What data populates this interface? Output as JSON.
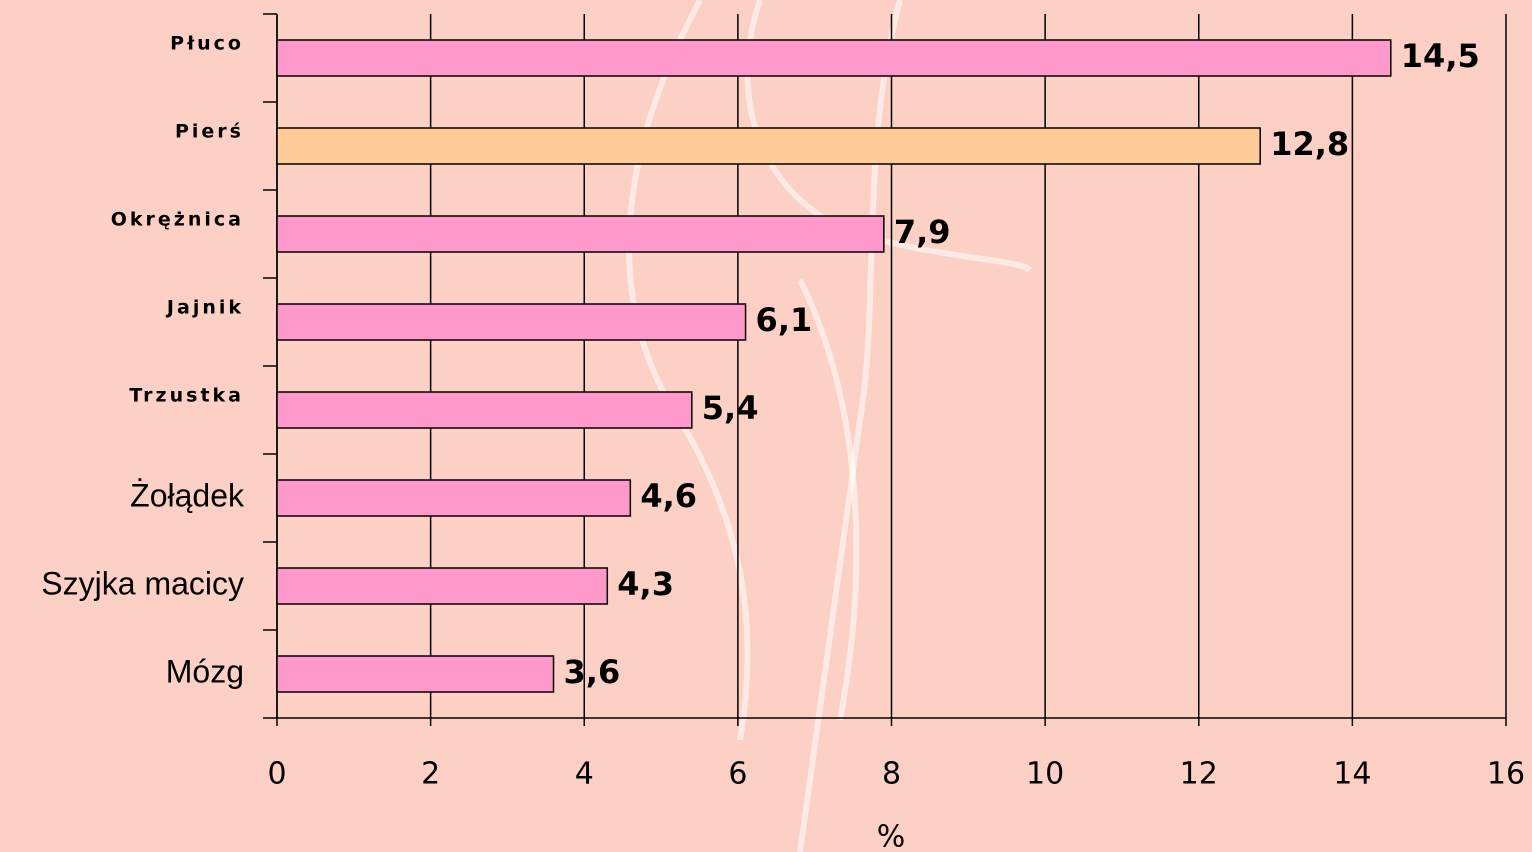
{
  "chart_data": {
    "type": "bar",
    "orientation": "horizontal",
    "categories": [
      "Płuco",
      "Pierś",
      "Okrężnica",
      "Jajnik",
      "Trzustka",
      "Żołądek",
      "Szyjka macicy",
      "Mózg"
    ],
    "values": [
      14.5,
      12.8,
      7.9,
      6.1,
      5.4,
      4.6,
      4.3,
      3.6
    ],
    "value_labels": [
      "14,5",
      "12,8",
      "7,9",
      "6,1",
      "5,4",
      "4,6",
      "4,3",
      "3,6"
    ],
    "colors": [
      "#ff99cc",
      "#ffcc99",
      "#ff99cc",
      "#ff99cc",
      "#ff99cc",
      "#ff99cc",
      "#ff99cc",
      "#ff99cc"
    ],
    "x_label": "%",
    "xlim": [
      0,
      16
    ],
    "xticks": [
      0,
      2,
      4,
      6,
      8,
      10,
      12,
      14,
      16
    ],
    "grid": true
  }
}
